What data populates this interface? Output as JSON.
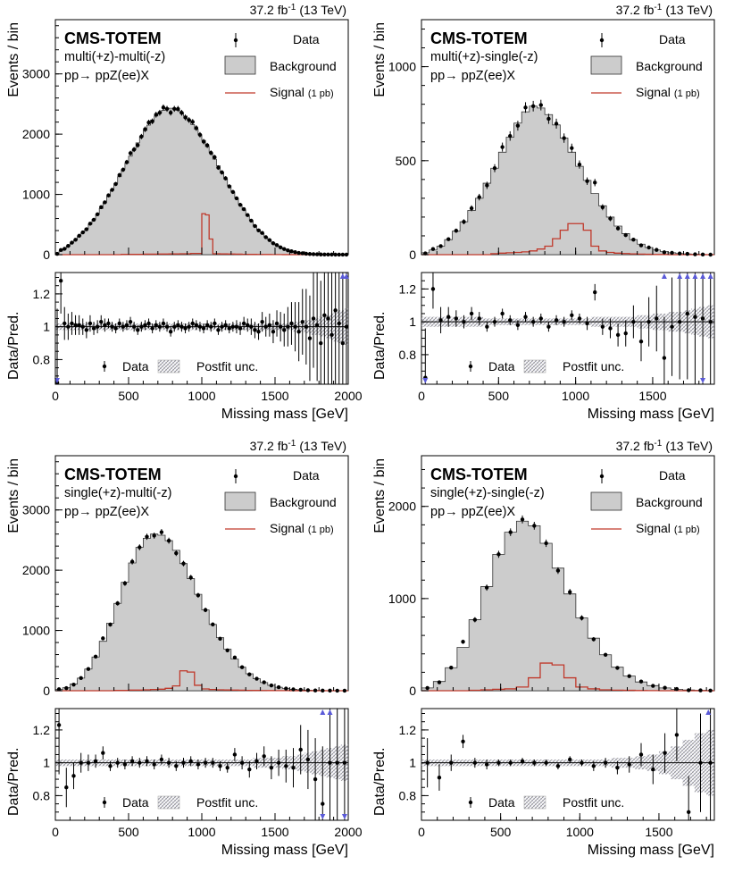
{
  "figure": {
    "experiment": "CMS-TOTEM",
    "lumi": "37.2 fb",
    "lumi_exp": "-1",
    "energy": "(13 TeV)",
    "process": "pp→ ppZ(ee)X",
    "legend_top": [
      "Data",
      "Background",
      "Signal",
      "(1 pb)"
    ],
    "legend_ratio": [
      "Data",
      "Postfit unc."
    ],
    "xlabel": "Missing mass [GeV]",
    "ylabel_top": "Events / bin",
    "ylabel_ratio": "Data/Pred.",
    "colors": {
      "background": "#cccccc",
      "signal": "#c0392b",
      "data": "#000000",
      "arrow": "#5a5ad8",
      "band": "#9a9a9a"
    }
  },
  "chart_data": [
    {
      "type": "bar",
      "title": "multi(+z)-multi(-z)",
      "xlim": [
        0,
        2000
      ],
      "ylim": [
        0,
        3900
      ],
      "ratio_ylim": [
        0.65,
        1.33
      ],
      "xticks": [
        0,
        500,
        1000,
        1500,
        2000
      ],
      "yticks": [
        0,
        1000,
        2000,
        3000
      ],
      "ratio_yticks": [
        0.8,
        1,
        1.2
      ],
      "bin_edges": [
        0,
        25,
        50,
        75,
        100,
        125,
        150,
        175,
        200,
        225,
        250,
        275,
        300,
        325,
        350,
        375,
        400,
        425,
        450,
        475,
        500,
        525,
        550,
        575,
        600,
        625,
        650,
        675,
        700,
        725,
        750,
        775,
        800,
        825,
        850,
        875,
        900,
        925,
        950,
        975,
        1000,
        1025,
        1050,
        1075,
        1100,
        1125,
        1150,
        1175,
        1200,
        1225,
        1250,
        1275,
        1300,
        1325,
        1350,
        1375,
        1400,
        1425,
        1450,
        1475,
        1500,
        1525,
        1550,
        1575,
        1600,
        1625,
        1650,
        1675,
        1700,
        1725,
        1750,
        1775,
        1800,
        1825,
        1850,
        1875,
        1900,
        1925,
        1950,
        1975,
        2000
      ],
      "background": [
        22,
        60,
        95,
        145,
        195,
        245,
        310,
        370,
        430,
        505,
        585,
        670,
        765,
        860,
        965,
        1075,
        1185,
        1295,
        1410,
        1520,
        1635,
        1745,
        1855,
        1960,
        2060,
        2150,
        2235,
        2300,
        2355,
        2395,
        2420,
        2430,
        2420,
        2395,
        2355,
        2300,
        2235,
        2160,
        2080,
        1990,
        1895,
        1795,
        1690,
        1585,
        1475,
        1365,
        1255,
        1145,
        1040,
        935,
        835,
        740,
        650,
        565,
        485,
        415,
        350,
        290,
        240,
        195,
        155,
        122,
        95,
        72,
        55,
        41,
        30,
        22,
        16,
        12,
        8,
        6,
        4,
        3,
        2,
        2,
        1,
        1,
        1,
        1
      ],
      "signal": [
        0,
        0,
        0,
        0,
        0,
        0,
        0,
        0,
        0,
        0,
        0,
        0,
        0,
        0,
        0,
        0,
        0,
        0,
        5,
        5,
        5,
        5,
        5,
        5,
        8,
        8,
        8,
        8,
        10,
        10,
        10,
        12,
        12,
        12,
        15,
        15,
        15,
        20,
        20,
        20,
        680,
        660,
        260,
        15,
        15,
        12,
        12,
        10,
        10,
        8,
        8,
        6,
        6,
        5,
        5,
        4,
        4,
        3,
        3,
        2,
        2,
        2,
        1,
        1,
        1,
        0,
        0,
        0,
        0,
        0,
        0,
        0,
        0,
        0,
        0,
        0,
        0,
        0,
        0,
        0
      ],
      "ratio": [
        0.66,
        1.28,
        1.02,
        1.0,
        1.02,
        1.01,
        1.01,
        1.0,
        0.98,
        1.02,
        0.99,
        1.0,
        1.03,
        1.01,
        1.02,
        1.0,
        0.99,
        1.02,
        1.0,
        1.01,
        1.03,
        1.0,
        0.98,
        1.0,
        1.01,
        1.02,
        0.99,
        1.01,
        1.0,
        1.02,
        1.0,
        0.97,
        1.0,
        1.01,
        1.0,
        0.99,
        1.0,
        1.02,
        1.01,
        1.0,
        0.99,
        1.01,
        1.0,
        1.02,
        0.98,
        1.0,
        1.01,
        0.99,
        1.0,
        1.0,
        0.99,
        1.02,
        1.01,
        1.0,
        0.98,
        0.97,
        1.03,
        1.0,
        1.01,
        0.97,
        1.02,
        1.0,
        0.98,
        1.0,
        1.02,
        1.0,
        0.97,
        1.03,
        1.0,
        0.93,
        1.05,
        1.01,
        0.9,
        1.07,
        1.05,
        0.95,
        1.1,
        1.02,
        0.9,
        1.0
      ],
      "ratio_err": [
        0.45,
        0.2,
        0.1,
        0.08,
        0.07,
        0.06,
        0.06,
        0.05,
        0.05,
        0.05,
        0.04,
        0.04,
        0.04,
        0.04,
        0.03,
        0.03,
        0.03,
        0.03,
        0.03,
        0.03,
        0.03,
        0.03,
        0.03,
        0.03,
        0.03,
        0.03,
        0.03,
        0.03,
        0.03,
        0.03,
        0.03,
        0.03,
        0.03,
        0.03,
        0.03,
        0.03,
        0.03,
        0.03,
        0.03,
        0.03,
        0.03,
        0.03,
        0.03,
        0.03,
        0.03,
        0.03,
        0.03,
        0.03,
        0.03,
        0.04,
        0.04,
        0.04,
        0.04,
        0.05,
        0.05,
        0.05,
        0.06,
        0.06,
        0.07,
        0.07,
        0.08,
        0.09,
        0.1,
        0.12,
        0.13,
        0.15,
        0.18,
        0.2,
        0.23,
        0.26,
        0.3,
        0.34,
        0.38,
        0.42,
        0.46,
        0.5,
        0.55,
        0.6,
        0.65,
        0.7
      ],
      "band_err": [
        0.02,
        0.02,
        0.02,
        0.02,
        0.02,
        0.02,
        0.02,
        0.02,
        0.02,
        0.02,
        0.02,
        0.02,
        0.02,
        0.02,
        0.02,
        0.02,
        0.02,
        0.02,
        0.02,
        0.02,
        0.02,
        0.02,
        0.02,
        0.02,
        0.02,
        0.02,
        0.02,
        0.02,
        0.02,
        0.02,
        0.02,
        0.02,
        0.02,
        0.02,
        0.02,
        0.02,
        0.02,
        0.02,
        0.02,
        0.02,
        0.02,
        0.02,
        0.02,
        0.02,
        0.02,
        0.02,
        0.02,
        0.02,
        0.02,
        0.02,
        0.02,
        0.02,
        0.02,
        0.02,
        0.02,
        0.02,
        0.02,
        0.02,
        0.02,
        0.02,
        0.02,
        0.02,
        0.02,
        0.02,
        0.02,
        0.03,
        0.03,
        0.03,
        0.04,
        0.04,
        0.05,
        0.05,
        0.06,
        0.06,
        0.07,
        0.08,
        0.09,
        0.1,
        0.1,
        0.11
      ],
      "arrows": [
        {
          "x": 12,
          "dir": "down"
        },
        {
          "x": 1962,
          "dir": "up"
        },
        {
          "x": 1987,
          "dir": "up"
        }
      ]
    },
    {
      "type": "bar",
      "title": "multi(+z)-single(-z)",
      "xlim": [
        0,
        1900
      ],
      "ylim": [
        0,
        1250
      ],
      "ratio_ylim": [
        0.62,
        1.3
      ],
      "xticks": [
        0,
        500,
        1000,
        1500
      ],
      "yticks": [
        0,
        500,
        1000
      ],
      "ratio_yticks": [
        0.8,
        1,
        1.2
      ],
      "bin_edges": [
        0,
        50,
        100,
        150,
        200,
        250,
        300,
        350,
        400,
        450,
        500,
        550,
        600,
        650,
        700,
        750,
        800,
        850,
        900,
        950,
        1000,
        1050,
        1100,
        1150,
        1200,
        1250,
        1300,
        1350,
        1400,
        1450,
        1500,
        1550,
        1600,
        1650,
        1700,
        1750,
        1800,
        1850,
        1900
      ],
      "background": [
        10,
        25,
        45,
        80,
        125,
        175,
        235,
        300,
        380,
        460,
        545,
        625,
        700,
        760,
        790,
        780,
        745,
        690,
        620,
        545,
        470,
        395,
        325,
        260,
        200,
        152,
        112,
        80,
        56,
        38,
        25,
        16,
        10,
        6,
        4,
        2,
        1,
        0
      ],
      "signal": [
        0,
        0,
        0,
        0,
        0,
        0,
        0,
        0,
        0,
        5,
        8,
        10,
        12,
        15,
        20,
        30,
        45,
        85,
        130,
        165,
        165,
        130,
        45,
        20,
        12,
        8,
        6,
        4,
        3,
        2,
        1,
        1,
        0,
        0,
        0,
        0,
        0,
        0
      ],
      "ratio": [
        0.66,
        1.2,
        1.01,
        1.03,
        1.02,
        1.0,
        1.05,
        1.02,
        0.97,
        1.0,
        1.05,
        1.01,
        0.98,
        1.03,
        1.0,
        1.02,
        0.97,
        1.01,
        1.0,
        1.04,
        1.02,
        0.99,
        1.18,
        0.97,
        0.96,
        0.92,
        0.93,
        1.0,
        0.88,
        1.0,
        1.02,
        0.78,
        0.97,
        1.0,
        1.05,
        1.03,
        1.02,
        1.0
      ],
      "ratio_err": [
        0.3,
        0.12,
        0.08,
        0.06,
        0.05,
        0.04,
        0.04,
        0.04,
        0.03,
        0.03,
        0.03,
        0.03,
        0.03,
        0.03,
        0.03,
        0.03,
        0.03,
        0.03,
        0.03,
        0.03,
        0.03,
        0.04,
        0.05,
        0.05,
        0.06,
        0.07,
        0.08,
        0.1,
        0.12,
        0.15,
        0.2,
        0.25,
        0.3,
        0.35,
        0.4,
        0.45,
        0.5,
        0.55
      ],
      "band_err": [
        0.03,
        0.03,
        0.03,
        0.03,
        0.03,
        0.03,
        0.03,
        0.03,
        0.02,
        0.02,
        0.02,
        0.02,
        0.02,
        0.02,
        0.02,
        0.02,
        0.02,
        0.02,
        0.02,
        0.02,
        0.02,
        0.02,
        0.03,
        0.03,
        0.03,
        0.03,
        0.03,
        0.03,
        0.04,
        0.04,
        0.05,
        0.05,
        0.06,
        0.06,
        0.07,
        0.08,
        0.09,
        0.1
      ],
      "arrows": [
        {
          "x": 25,
          "dir": "down"
        },
        {
          "x": 1575,
          "dir": "up"
        },
        {
          "x": 1675,
          "dir": "up"
        },
        {
          "x": 1725,
          "dir": "up"
        },
        {
          "x": 1775,
          "dir": "up"
        },
        {
          "x": 1825,
          "dir": "up"
        },
        {
          "x": 1875,
          "dir": "up"
        },
        {
          "x": 1825,
          "dir": "down"
        }
      ]
    },
    {
      "type": "bar",
      "title": "single(+z)-multi(-z)",
      "xlim": [
        0,
        2000
      ],
      "ylim": [
        0,
        3900
      ],
      "ratio_ylim": [
        0.65,
        1.33
      ],
      "xticks": [
        0,
        500,
        1000,
        1500,
        2000
      ],
      "yticks": [
        0,
        1000,
        2000,
        3000
      ],
      "ratio_yticks": [
        0.8,
        1,
        1.2
      ],
      "bin_edges": [
        0,
        50,
        100,
        150,
        200,
        250,
        300,
        350,
        400,
        450,
        500,
        550,
        600,
        650,
        700,
        750,
        800,
        850,
        900,
        950,
        1000,
        1050,
        1100,
        1150,
        1200,
        1250,
        1300,
        1350,
        1400,
        1450,
        1500,
        1550,
        1600,
        1650,
        1700,
        1750,
        1800,
        1850,
        1900,
        1950,
        2000
      ],
      "background": [
        20,
        50,
        110,
        210,
        360,
        560,
        820,
        1120,
        1450,
        1800,
        2120,
        2380,
        2530,
        2600,
        2580,
        2490,
        2330,
        2110,
        1860,
        1600,
        1340,
        1100,
        880,
        690,
        525,
        390,
        282,
        198,
        135,
        90,
        58,
        37,
        23,
        14,
        8,
        5,
        3,
        2,
        1,
        1
      ],
      "signal": [
        0,
        0,
        0,
        0,
        0,
        0,
        0,
        0,
        5,
        5,
        10,
        10,
        15,
        20,
        25,
        40,
        80,
        330,
        310,
        90,
        30,
        20,
        15,
        12,
        10,
        8,
        6,
        5,
        4,
        3,
        2,
        2,
        1,
        1,
        0,
        0,
        0,
        0,
        0,
        0
      ],
      "ratio": [
        1.23,
        0.85,
        0.92,
        1.0,
        1.0,
        1.01,
        1.06,
        0.98,
        1.0,
        0.99,
        1.01,
        1.0,
        1.01,
        0.99,
        1.02,
        1.0,
        0.98,
        1.0,
        1.01,
        0.99,
        1.0,
        1.0,
        0.98,
        0.97,
        1.05,
        1.0,
        0.96,
        1.01,
        1.04,
        0.97,
        1.0,
        0.98,
        0.97,
        1.08,
        1.02,
        0.9,
        0.75,
        1.0,
        1.0,
        1.0
      ],
      "ratio_err": [
        0.3,
        0.12,
        0.08,
        0.06,
        0.05,
        0.04,
        0.04,
        0.03,
        0.03,
        0.03,
        0.03,
        0.03,
        0.03,
        0.03,
        0.03,
        0.03,
        0.03,
        0.03,
        0.03,
        0.03,
        0.03,
        0.03,
        0.03,
        0.03,
        0.04,
        0.04,
        0.05,
        0.05,
        0.06,
        0.07,
        0.08,
        0.1,
        0.12,
        0.15,
        0.18,
        0.25,
        0.35,
        0.5,
        0.6,
        0.7
      ],
      "band_err": [
        0.02,
        0.02,
        0.02,
        0.02,
        0.02,
        0.02,
        0.02,
        0.02,
        0.02,
        0.02,
        0.02,
        0.02,
        0.02,
        0.02,
        0.02,
        0.02,
        0.02,
        0.02,
        0.02,
        0.02,
        0.02,
        0.02,
        0.02,
        0.02,
        0.02,
        0.02,
        0.02,
        0.03,
        0.03,
        0.03,
        0.03,
        0.04,
        0.04,
        0.05,
        0.06,
        0.07,
        0.08,
        0.09,
        0.1,
        0.11
      ],
      "arrows": [
        {
          "x": 1825,
          "dir": "up"
        },
        {
          "x": 1875,
          "dir": "up"
        },
        {
          "x": 1825,
          "dir": "down"
        },
        {
          "x": 1975,
          "dir": "down"
        }
      ]
    },
    {
      "type": "bar",
      "title": "single(+z)-single(-z)",
      "xlim": [
        0,
        1850
      ],
      "ylim": [
        0,
        2550
      ],
      "ratio_ylim": [
        0.65,
        1.33
      ],
      "xticks": [
        0,
        500,
        1000,
        1500
      ],
      "yticks": [
        0,
        1000,
        2000
      ],
      "ratio_yticks": [
        0.8,
        1,
        1.2
      ],
      "bin_edges": [
        0,
        75,
        150,
        225,
        300,
        375,
        450,
        525,
        600,
        675,
        750,
        825,
        900,
        975,
        1050,
        1125,
        1200,
        1275,
        1350,
        1425,
        1500,
        1575,
        1650,
        1725,
        1800,
        1850
      ],
      "background": [
        30,
        100,
        250,
        470,
        770,
        1130,
        1480,
        1720,
        1840,
        1790,
        1600,
        1330,
        1050,
        790,
        570,
        390,
        255,
        160,
        95,
        55,
        30,
        16,
        8,
        4,
        2
      ],
      "signal": [
        0,
        0,
        0,
        0,
        5,
        10,
        15,
        20,
        40,
        140,
        300,
        280,
        140,
        40,
        20,
        10,
        6,
        4,
        2,
        1,
        0,
        0,
        0,
        0,
        0
      ],
      "ratio": [
        1.0,
        0.91,
        1.0,
        1.13,
        1.0,
        0.99,
        1.0,
        1.0,
        1.01,
        1.0,
        1.0,
        0.98,
        1.02,
        1.0,
        0.98,
        1.0,
        0.97,
        0.99,
        1.05,
        0.96,
        1.06,
        1.17,
        0.7,
        1.0,
        1.0
      ],
      "ratio_err": [
        0.15,
        0.08,
        0.05,
        0.04,
        0.03,
        0.03,
        0.02,
        0.02,
        0.02,
        0.02,
        0.02,
        0.02,
        0.02,
        0.02,
        0.03,
        0.03,
        0.04,
        0.05,
        0.07,
        0.09,
        0.12,
        0.16,
        0.22,
        0.3,
        0.4
      ],
      "band_err": [
        0.02,
        0.02,
        0.02,
        0.02,
        0.02,
        0.02,
        0.02,
        0.02,
        0.02,
        0.02,
        0.02,
        0.02,
        0.02,
        0.02,
        0.02,
        0.02,
        0.03,
        0.03,
        0.04,
        0.05,
        0.07,
        0.1,
        0.14,
        0.18,
        0.2
      ],
      "arrows": [
        {
          "x": 1812,
          "dir": "up"
        }
      ]
    }
  ]
}
